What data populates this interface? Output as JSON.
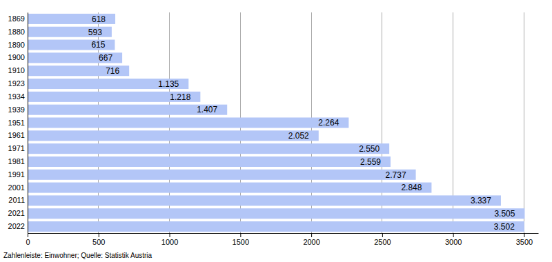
{
  "chart_data": {
    "type": "bar",
    "orientation": "horizontal",
    "categories": [
      "1869",
      "1880",
      "1890",
      "1900",
      "1910",
      "1923",
      "1934",
      "1939",
      "1951",
      "1961",
      "1971",
      "1981",
      "1991",
      "2001",
      "2011",
      "2021",
      "2022"
    ],
    "values": [
      618,
      593,
      615,
      667,
      716,
      1135,
      1218,
      1407,
      2264,
      2052,
      2550,
      2559,
      2737,
      2848,
      3337,
      3505,
      3502
    ],
    "value_labels": [
      "618",
      "593",
      "615",
      "667",
      "716",
      "1.135",
      "1.218",
      "1.407",
      "2.264",
      "2.052",
      "2.550",
      "2.559",
      "2.737",
      "2.848",
      "3.337",
      "3.505",
      "3.502"
    ],
    "data_labels": true,
    "color": "#b3c6f7",
    "xlim": [
      0,
      3600
    ],
    "xticks": [
      0,
      500,
      1000,
      1500,
      2000,
      2500,
      3000,
      3500
    ],
    "grid": true,
    "annotations": [
      "Zahlenleiste: Einwohner; Quelle: Statistik Austria"
    ]
  }
}
